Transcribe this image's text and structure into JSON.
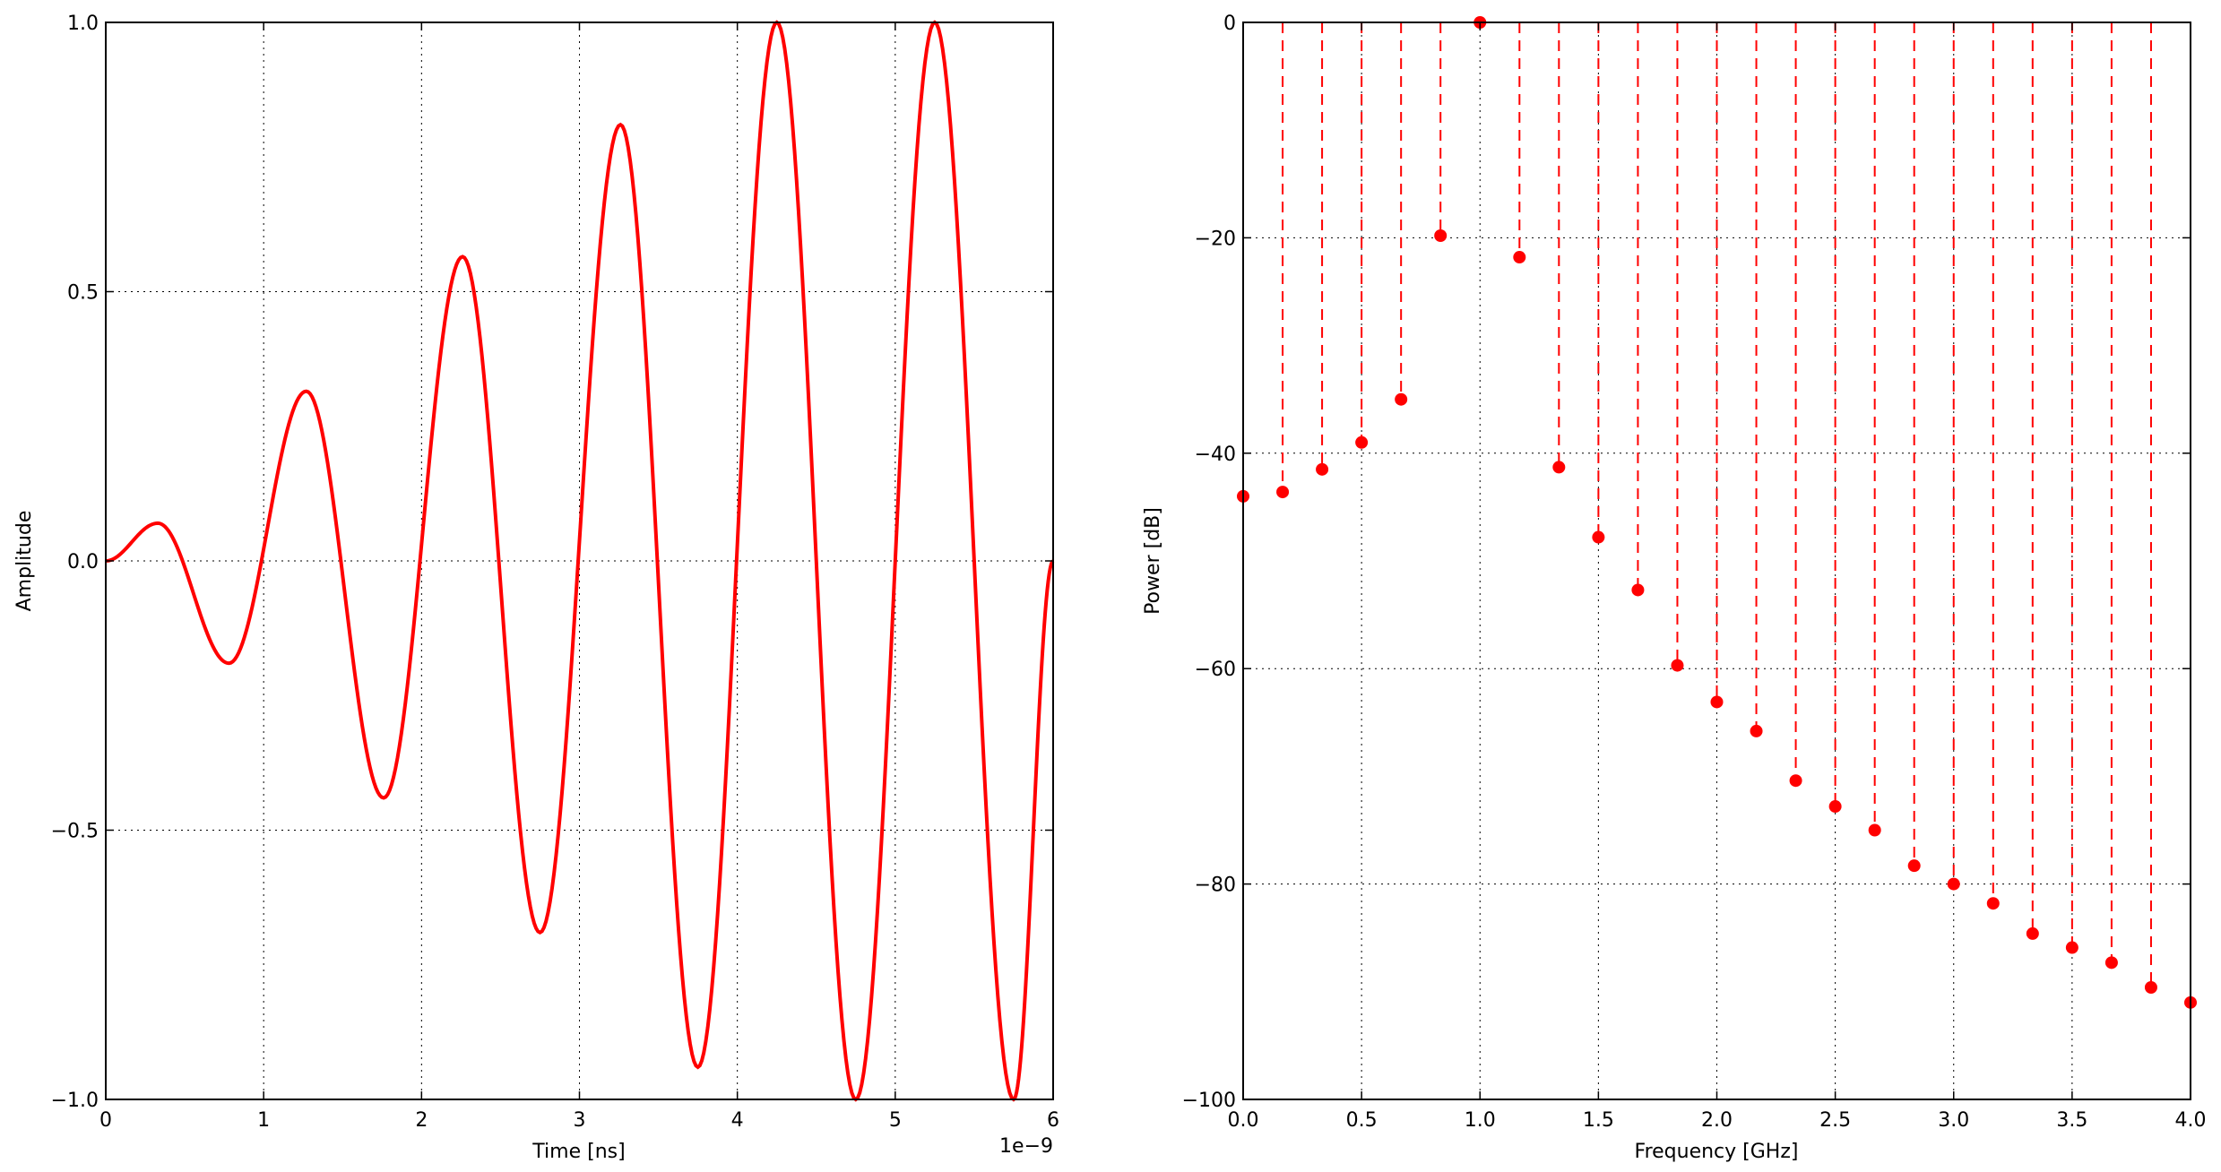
{
  "chart_data": [
    {
      "type": "line",
      "xlabel": "Time [ns]",
      "ylabel": "Amplitude",
      "x_offset_label": "1e−9",
      "xlim": [
        0,
        6
      ],
      "ylim": [
        -1.0,
        1.0
      ],
      "xticks": [
        0,
        1,
        2,
        3,
        4,
        5,
        6
      ],
      "xtick_labels": [
        "0",
        "1",
        "2",
        "3",
        "4",
        "5",
        "6"
      ],
      "yticks": [
        -1.0,
        -0.5,
        0.0,
        0.5,
        1.0
      ],
      "ytick_labels": [
        "−1.0",
        "−0.5",
        "0.0",
        "0.5",
        "1.0"
      ],
      "grid": true,
      "line_color": "#ff0000",
      "series": [
        {
          "name": "",
          "x": [
            0,
            0.33,
            0.78,
            1.27,
            1.76,
            2.26,
            2.75,
            3.26,
            3.75,
            4.25,
            4.75,
            5.25,
            5.75,
            6.0
          ],
          "y": [
            0.0,
            0.07,
            -0.19,
            0.315,
            -0.44,
            0.565,
            -0.69,
            0.81,
            -0.94,
            1.0,
            -1.0,
            1.0,
            -1.0,
            0.0
          ]
        }
      ]
    },
    {
      "type": "scatter",
      "xlabel": "Frequency [GHz]",
      "ylabel": "Power [dB]",
      "xlim": [
        0.0,
        4.0
      ],
      "ylim": [
        -100,
        0
      ],
      "xticks": [
        0.0,
        0.5,
        1.0,
        1.5,
        2.0,
        2.5,
        3.0,
        3.5,
        4.0
      ],
      "xtick_labels": [
        "0.0",
        "0.5",
        "1.0",
        "1.5",
        "2.0",
        "2.5",
        "3.0",
        "3.5",
        "4.0"
      ],
      "yticks": [
        -100,
        -80,
        -60,
        -40,
        -20,
        0
      ],
      "ytick_labels": [
        "−100",
        "−80",
        "−60",
        "−40",
        "−20",
        "0"
      ],
      "grid": true,
      "marker_color": "#ff0000",
      "stem_style": "dashed",
      "series": [
        {
          "name": "",
          "x": [
            0.0,
            0.1667,
            0.3333,
            0.5,
            0.6667,
            0.8333,
            1.0,
            1.1667,
            1.3333,
            1.5,
            1.6667,
            1.8333,
            2.0,
            2.1667,
            2.3333,
            2.5,
            2.6667,
            2.8333,
            3.0,
            3.1667,
            3.3333,
            3.5,
            3.6667,
            3.8333,
            4.0
          ],
          "y": [
            -44.0,
            -43.6,
            -41.5,
            -39.0,
            -35.0,
            -19.8,
            0.0,
            -21.8,
            -41.3,
            -47.8,
            -52.7,
            -59.7,
            -63.1,
            -65.8,
            -70.4,
            -72.8,
            -75.0,
            -78.3,
            -80.0,
            -81.8,
            -84.6,
            -85.9,
            -87.3,
            -89.6,
            -91.0
          ]
        }
      ]
    }
  ]
}
